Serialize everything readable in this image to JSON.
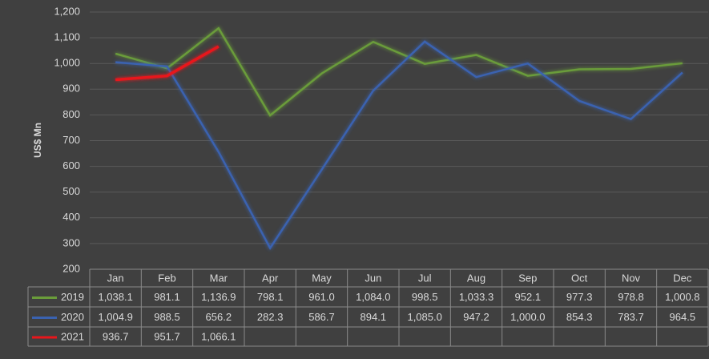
{
  "chart_data": {
    "type": "line",
    "y_label": "US$ Mn",
    "categories": [
      "Jan",
      "Feb",
      "Mar",
      "Apr",
      "May",
      "Jun",
      "Jul",
      "Aug",
      "Sep",
      "Oct",
      "Nov",
      "Dec"
    ],
    "series": [
      {
        "name": "2019",
        "color": "#6a9c3a",
        "values": [
          1038.1,
          981.1,
          1136.9,
          798.1,
          961.0,
          1084.0,
          998.5,
          1033.3,
          952.1,
          977.3,
          978.8,
          1000.8
        ],
        "value_labels": [
          "1,038.1",
          "981.1",
          "1,136.9",
          "798.1",
          "961.0",
          "1,084.0",
          "998.5",
          "1,033.3",
          "952.1",
          "977.3",
          "978.8",
          "1,000.8"
        ]
      },
      {
        "name": "2020",
        "color": "#3a62b0",
        "values": [
          1004.9,
          988.5,
          656.2,
          282.3,
          586.7,
          894.1,
          1085.0,
          947.2,
          1000.0,
          854.3,
          783.7,
          964.5
        ],
        "value_labels": [
          "1,004.9",
          "988.5",
          "656.2",
          "282.3",
          "586.7",
          "894.1",
          "1,085.0",
          "947.2",
          "1,000.0",
          "854.3",
          "783.7",
          "964.5"
        ]
      },
      {
        "name": "2021",
        "color": "#e8161b",
        "values": [
          936.7,
          951.7,
          1066.1,
          null,
          null,
          null,
          null,
          null,
          null,
          null,
          null,
          null
        ],
        "value_labels": [
          "936.7",
          "951.7",
          "1,066.1",
          null,
          null,
          null,
          null,
          null,
          null,
          null,
          null,
          null
        ]
      }
    ],
    "ylim": [
      200,
      1200
    ],
    "yticks": [
      200,
      300,
      400,
      500,
      600,
      700,
      800,
      900,
      {
        "value": 1000,
        "label": "1,000"
      },
      {
        "value": 1100,
        "label": "1,100"
      },
      {
        "value": 1200,
        "label": "1,200"
      }
    ],
    "grid": true
  }
}
